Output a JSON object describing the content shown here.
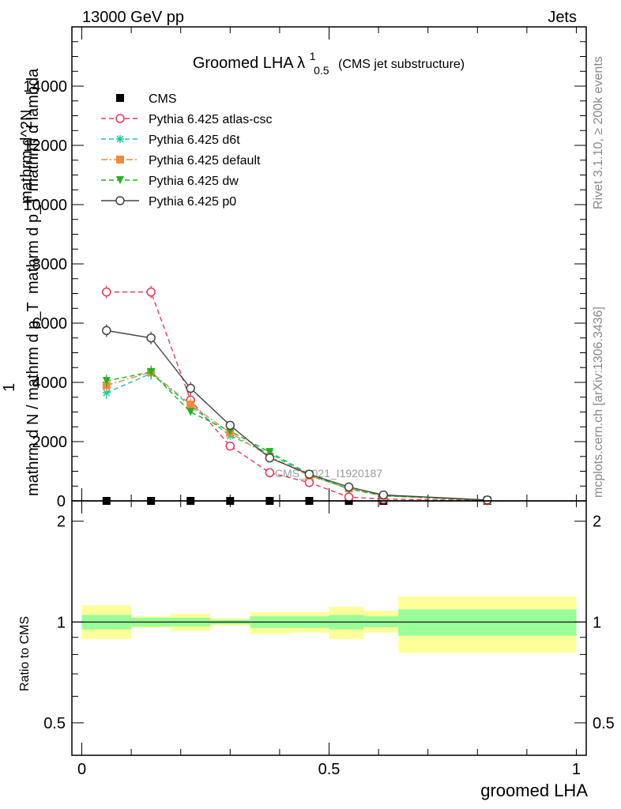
{
  "header": {
    "left": "13000 GeV pp",
    "right": "Jets"
  },
  "side_labels": {
    "rivet": "Rivet 3.1.10, ≥ 200k events",
    "mcplots": "mcplots.cern.ch [arXiv:1306.3436]"
  },
  "chart_data": [
    {
      "type": "line",
      "title": "Groomed LHA",
      "title_symbol": "λ",
      "title_superscript": "1",
      "title_subscript": "0.5",
      "title_suffix": "(CMS jet substructure)",
      "watermark": "CMS_2021_I1920187",
      "xlabel": "",
      "ylabel_top": "mathrm d^2N",
      "ylabel_mid": "mathrm d p_T mathrm d lambda",
      "ylabel_one": "1",
      "ylabel_bottom": "mathrm d N / mathrm d p_T",
      "xlim": [
        -0.02,
        1.02
      ],
      "ylim": [
        0,
        16000
      ],
      "yticks": [
        {
          "value": 2000,
          "label": "2000"
        },
        {
          "value": 4000,
          "label": "4000"
        },
        {
          "value": 6000,
          "label": "6000"
        },
        {
          "value": 8000,
          "label": "8000"
        },
        {
          "value": 10000,
          "label": "10000"
        },
        {
          "value": 12000,
          "label": "12000"
        },
        {
          "value": 14000,
          "label": "14000"
        }
      ],
      "x": [
        0.05,
        0.14,
        0.22,
        0.3,
        0.38,
        0.46,
        0.54,
        0.61,
        0.82
      ],
      "series": [
        {
          "name": "CMS",
          "color": "#000000",
          "marker": "square-filled",
          "line": "none",
          "values": [
            0,
            0,
            0,
            0,
            0,
            0,
            0,
            0,
            0
          ]
        },
        {
          "name": "Pythia 6.425 atlas-csc",
          "color": "#e8375a",
          "marker": "circle-open",
          "line": "dashed",
          "values": [
            7050,
            7050,
            3400,
            1850,
            950,
            620,
            130,
            60,
            10
          ]
        },
        {
          "name": "Pythia 6.425 d6t",
          "color": "#1ac8a0",
          "marker": "star",
          "line": "dashed",
          "values": [
            3650,
            4300,
            3200,
            2200,
            1600,
            850,
            420,
            180,
            20
          ]
        },
        {
          "name": "Pythia 6.425 default",
          "color": "#f58a3a",
          "marker": "square-filled",
          "line": "dashdot",
          "values": [
            3900,
            4350,
            3250,
            2300,
            1500,
            850,
            420,
            170,
            20
          ]
        },
        {
          "name": "Pythia 6.425 dw",
          "color": "#1fb31f",
          "marker": "triangle-down-filled",
          "line": "dashed",
          "values": [
            4050,
            4350,
            3000,
            2350,
            1650,
            900,
            400,
            170,
            20
          ]
        },
        {
          "name": "Pythia 6.425 p0",
          "color": "#444444",
          "marker": "circle-open",
          "line": "solid",
          "values": [
            5750,
            5500,
            3800,
            2550,
            1450,
            900,
            470,
            200,
            30
          ]
        }
      ]
    },
    {
      "type": "area",
      "ylabel": "Ratio to CMS",
      "xlabel": "groomed LHA",
      "xlim": [
        -0.02,
        1.02
      ],
      "ylim": [
        0.4,
        2.3
      ],
      "log_y": true,
      "yticks": [
        {
          "value": 0.5,
          "label": "0.5"
        },
        {
          "value": 1,
          "label": "1"
        },
        {
          "value": 2,
          "label": "2"
        }
      ],
      "xticks": [
        {
          "value": 0,
          "label": "0"
        },
        {
          "value": 0.5,
          "label": "0.5"
        },
        {
          "value": 1,
          "label": "1"
        }
      ],
      "reference_line": 1,
      "bins": [
        0,
        0.1,
        0.18,
        0.26,
        0.34,
        0.42,
        0.5,
        0.57,
        0.64,
        1.0
      ],
      "band_inner": {
        "color": "#99ff99",
        "lo": [
          0.95,
          0.97,
          0.97,
          0.985,
          0.96,
          0.96,
          0.95,
          0.965,
          0.91
        ],
        "hi": [
          1.05,
          1.03,
          1.03,
          1.015,
          1.04,
          1.04,
          1.05,
          1.04,
          1.09
        ]
      },
      "band_outer": {
        "color": "#ffff99",
        "lo": [
          0.89,
          0.96,
          0.94,
          0.975,
          0.92,
          0.93,
          0.89,
          0.93,
          0.81
        ],
        "hi": [
          1.12,
          1.04,
          1.06,
          1.025,
          1.07,
          1.07,
          1.11,
          1.08,
          1.19
        ]
      }
    }
  ]
}
